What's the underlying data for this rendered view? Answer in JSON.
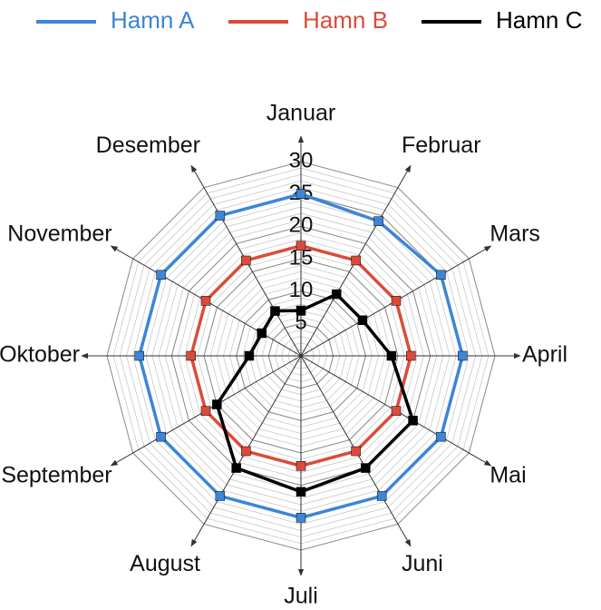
{
  "chart_data": {
    "type": "radar",
    "categories": [
      "Januar",
      "Februar",
      "Mars",
      "April",
      "Mai",
      "Juni",
      "Juli",
      "August",
      "September",
      "Oktober",
      "November",
      "Desember"
    ],
    "series": [
      {
        "name": "Hamn A",
        "color": "#3d85d6",
        "values": [
          25,
          24,
          25,
          25,
          25,
          25,
          25,
          25,
          25,
          25,
          25,
          25
        ]
      },
      {
        "name": "Hamn B",
        "color": "#dc4b3a",
        "values": [
          17,
          17,
          17,
          17,
          17,
          17,
          17,
          17,
          17,
          17,
          17,
          17
        ]
      },
      {
        "name": "Hamn C",
        "color": "#000000",
        "values": [
          7,
          11,
          11,
          14,
          20,
          20,
          21,
          20,
          15,
          8,
          7,
          8
        ]
      }
    ],
    "ylim": [
      0,
      30
    ],
    "yticks": [
      5,
      10,
      15,
      20,
      25,
      30
    ],
    "grid": true,
    "legend": "top"
  }
}
